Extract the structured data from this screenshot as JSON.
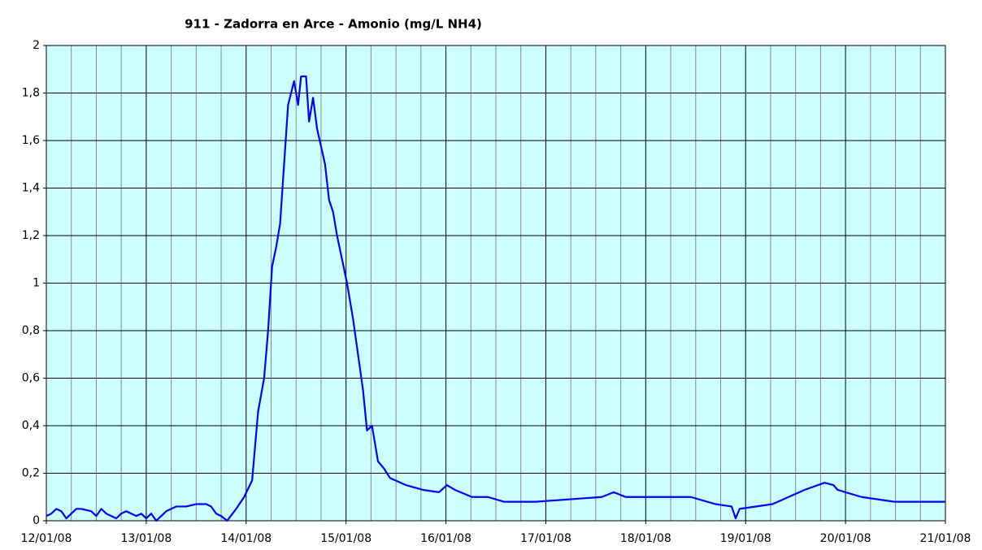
{
  "chart_data": {
    "type": "line",
    "title": "911 - Zadorra en Arce - Amonio (mg/L NH4)",
    "x": [
      0,
      0.05,
      0.1,
      0.15,
      0.2,
      0.25,
      0.3,
      0.35,
      0.45,
      0.5,
      0.55,
      0.6,
      0.7,
      0.75,
      0.8,
      0.9,
      0.95,
      1.0,
      1.05,
      1.1,
      1.15,
      1.2,
      1.25,
      1.3,
      1.4,
      1.5,
      1.6,
      1.65,
      1.7,
      1.75,
      1.81,
      1.9,
      1.98,
      2.06,
      2.12,
      2.18,
      2.22,
      2.26,
      2.3,
      2.34,
      2.38,
      2.42,
      2.48,
      2.52,
      2.55,
      2.6,
      2.63,
      2.67,
      2.71,
      2.79,
      2.83,
      2.87,
      2.91,
      2.95,
      3.01,
      3.07,
      3.12,
      3.17,
      3.21,
      3.26,
      3.32,
      3.38,
      3.44,
      3.6,
      3.77,
      3.93,
      4.01,
      4.09,
      4.26,
      4.42,
      4.58,
      4.9,
      5.23,
      5.56,
      5.68,
      5.8,
      6.45,
      6.7,
      6.86,
      6.9,
      6.94,
      7.27,
      7.59,
      7.79,
      7.88,
      7.92,
      8.16,
      8.49,
      8.81,
      9
    ],
    "series": [
      {
        "name": "Amonio",
        "color": "#0000ff",
        "values": [
          0.02,
          0.03,
          0.05,
          0.04,
          0.01,
          0.03,
          0.05,
          0.05,
          0.04,
          0.02,
          0.05,
          0.03,
          0.01,
          0.03,
          0.04,
          0.02,
          0.03,
          0.01,
          0.03,
          0.0,
          0.02,
          0.04,
          0.05,
          0.06,
          0.06,
          0.07,
          0.07,
          0.06,
          0.03,
          0.02,
          0.0,
          0.05,
          0.1,
          0.17,
          0.46,
          0.6,
          0.8,
          1.07,
          1.15,
          1.25,
          1.5,
          1.75,
          1.85,
          1.75,
          1.87,
          1.87,
          1.68,
          1.78,
          1.65,
          1.5,
          1.35,
          1.3,
          1.2,
          1.12,
          1.0,
          0.85,
          0.7,
          0.55,
          0.38,
          0.4,
          0.25,
          0.22,
          0.18,
          0.15,
          0.13,
          0.12,
          0.15,
          0.13,
          0.1,
          0.1,
          0.08,
          0.08,
          0.09,
          0.1,
          0.12,
          0.1,
          0.1,
          0.07,
          0.06,
          0.01,
          0.05,
          0.07,
          0.13,
          0.16,
          0.15,
          0.13,
          0.1,
          0.08,
          0.08,
          0.08
        ]
      }
    ],
    "xlim": [
      0,
      9
    ],
    "xticks": [
      {
        "value": 0,
        "label": "12/01/08"
      },
      {
        "value": 1,
        "label": "13/01/08"
      },
      {
        "value": 2,
        "label": "14/01/08"
      },
      {
        "value": 3,
        "label": "15/01/08"
      },
      {
        "value": 4,
        "label": "16/01/08"
      },
      {
        "value": 5,
        "label": "17/01/08"
      },
      {
        "value": 6,
        "label": "18/01/08"
      },
      {
        "value": 7,
        "label": "19/01/08"
      },
      {
        "value": 8,
        "label": "20/01/08"
      },
      {
        "value": 9,
        "label": "21/01/08"
      }
    ],
    "xminor": [
      0.25,
      0.5,
      0.75,
      1.25,
      1.5,
      1.75,
      2.25,
      2.5,
      2.75,
      3.25,
      3.5,
      3.75,
      4.25,
      4.5,
      4.75,
      5.25,
      5.5,
      5.75,
      6.25,
      6.5,
      6.75,
      7.25,
      7.5,
      7.75,
      8.25,
      8.5,
      8.75
    ],
    "ylim": [
      0,
      2
    ],
    "yticks": [
      0,
      {
        "value": 0.2,
        "label": "0,2"
      },
      {
        "value": 0.4,
        "label": "0,4"
      },
      {
        "value": 0.6,
        "label": "0,6"
      },
      {
        "value": 0.8,
        "label": "0,8"
      },
      1,
      {
        "value": 1.2,
        "label": "1,2"
      },
      {
        "value": 1.4,
        "label": "1,4"
      },
      {
        "value": 1.6,
        "label": "1,6"
      },
      {
        "value": 1.8,
        "label": "1,8"
      },
      2
    ],
    "grid": true,
    "background": "#ccffff"
  }
}
